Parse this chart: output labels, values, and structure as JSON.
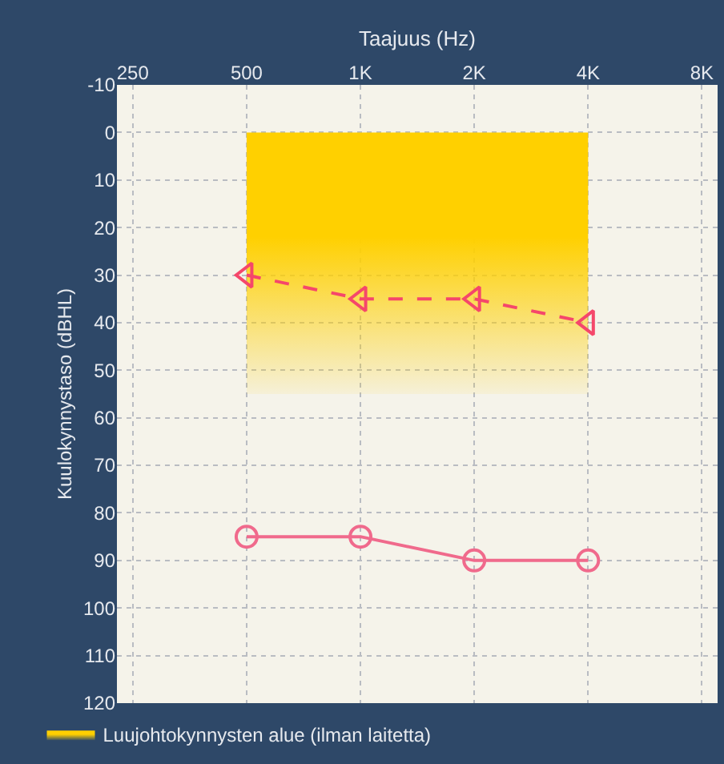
{
  "chart_data": {
    "type": "line",
    "xlabel": "Taajuus (Hz)",
    "ylabel": "Kuulokynnystaso (dBHL)",
    "log": "x",
    "xlim": [
      227,
      8800
    ],
    "xticks": [
      250,
      500,
      {
        "value": 1000,
        "label": "1K"
      },
      {
        "value": 2000,
        "label": "2K"
      },
      {
        "value": 4000,
        "label": "4K"
      },
      {
        "value": 8000,
        "label": "8K"
      }
    ],
    "ylim": [
      120,
      -10
    ],
    "yticks": [
      -10,
      0,
      10,
      20,
      30,
      40,
      50,
      60,
      70,
      80,
      90,
      100,
      110,
      120
    ],
    "grid": true,
    "legend": "bottom",
    "x": [
      500,
      1000,
      2000,
      4000
    ],
    "series": [
      {
        "name": "Luujohtokynnysten alue (ilman laitetta)",
        "type": "area",
        "color": "#ffd000",
        "x": [
          500,
          4000
        ],
        "values": [
          55,
          55
        ],
        "marker": "none"
      },
      {
        "color": "#f5476b",
        "values": [
          30,
          35,
          35,
          40
        ],
        "marker": "triangle",
        "line_style": "dashed"
      },
      {
        "color": "#f06a8c",
        "values": [
          85,
          85,
          90,
          90
        ],
        "marker": "circle",
        "line_style": "solid"
      }
    ]
  }
}
